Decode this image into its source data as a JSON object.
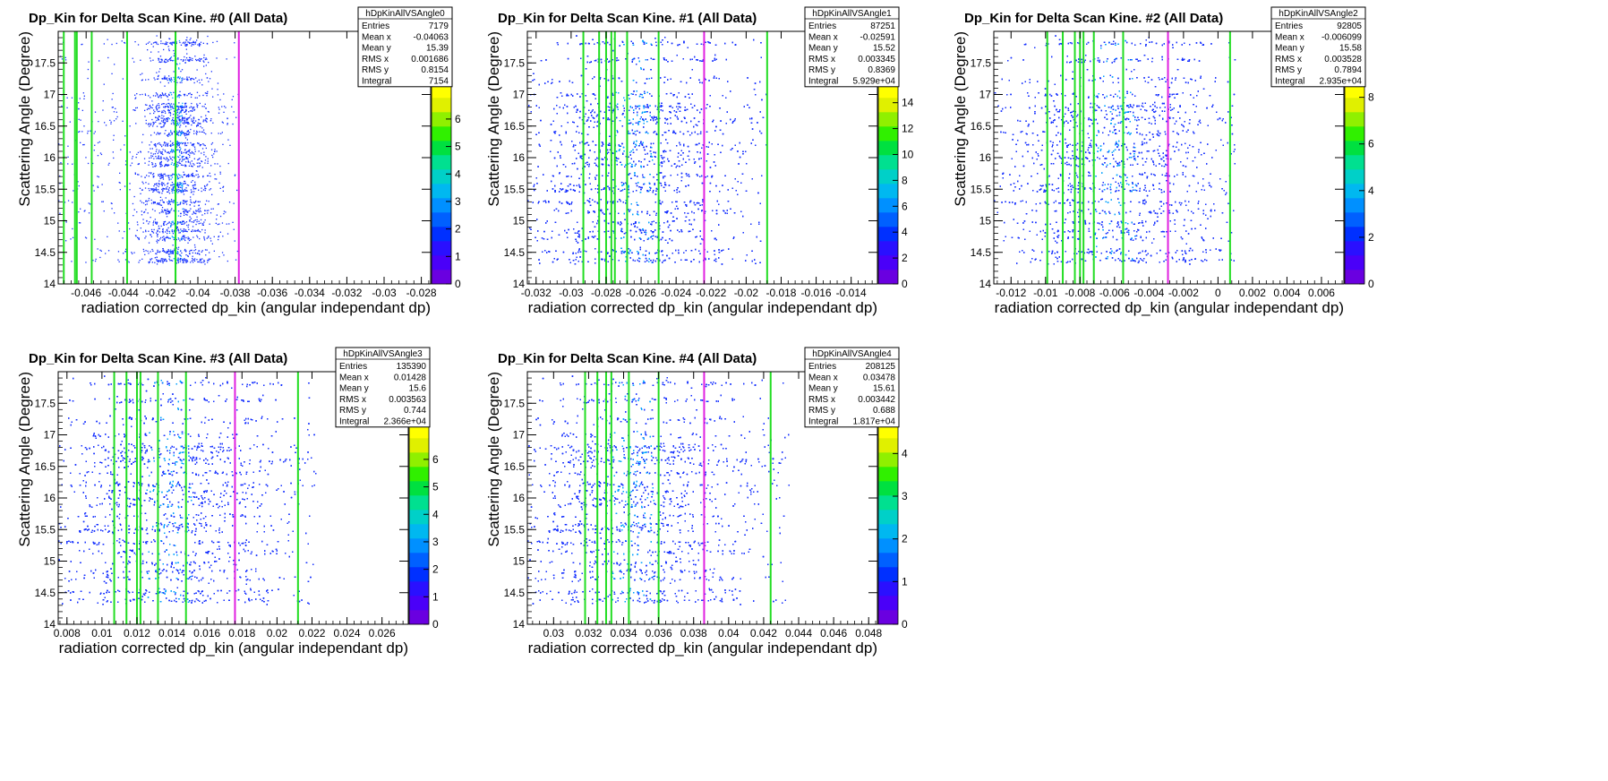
{
  "colors": {
    "palette": [
      "#6a00e0",
      "#4a00f8",
      "#2a10ff",
      "#0030ff",
      "#0060ff",
      "#0090ff",
      "#00b8f0",
      "#00d0c8",
      "#00e090",
      "#00e040",
      "#30f000",
      "#90f000",
      "#e0f000",
      "#ffff00"
    ],
    "cut_line": "#22dd22",
    "peak_line": "#e020e0",
    "dots": "#1530ff",
    "dots_dense": "#00a0ff"
  },
  "chart_data": [
    {
      "type": "heatmap",
      "title": "Dp_Kin for Delta Scan Kine. #0 (All Data)",
      "xlabel": "radiation corrected dp_kin (angular independant dp)",
      "ylabel": "Scattering Angle (Degree)",
      "xlim": [
        -0.0475,
        -0.0275
      ],
      "ylim": [
        14,
        18
      ],
      "xticks": [
        -0.046,
        -0.044,
        -0.042,
        -0.04,
        -0.038,
        -0.036,
        -0.034,
        -0.032,
        -0.03,
        -0.028
      ],
      "xtick_labels": [
        "-0.046",
        "-0.044",
        "-0.042",
        "-0.04",
        "-0.038",
        "-0.036",
        "-0.034",
        "-0.032",
        "-0.03",
        "-0.028"
      ],
      "yticks": [
        14,
        14.5,
        15,
        15.5,
        16,
        16.5,
        17,
        17.5
      ],
      "ytick_labels": [
        "14",
        "14.5",
        "15",
        "15.5",
        "16",
        "16.5",
        "17",
        "17.5"
      ],
      "zmax": 7.3,
      "zticks": [
        0,
        1,
        2,
        3,
        4,
        5,
        6
      ],
      "ztick_labels": [
        "0",
        "1",
        "2",
        "3",
        "4",
        "5",
        "6"
      ],
      "green_lines": [
        -0.0472,
        -0.0466,
        -0.0465,
        -0.0457,
        -0.0438,
        -0.0412,
        -0.0412
      ],
      "magenta_line": -0.0378,
      "density": {
        "x_center": -0.0412,
        "x_sigma": 0.0009,
        "tail_to": -0.0378,
        "points": 2300
      },
      "stats": {
        "name": "hDpKinAllVSAngle0",
        "rows": [
          [
            "Entries",
            "7179"
          ],
          [
            "Mean x",
            "-0.04063"
          ],
          [
            "Mean y",
            "15.39"
          ],
          [
            "RMS x",
            "0.001686"
          ],
          [
            "RMS y",
            "0.8154"
          ],
          [
            "Integral",
            "7154"
          ]
        ]
      }
    },
    {
      "type": "heatmap",
      "title": "Dp_Kin for Delta Scan Kine. #1 (All Data)",
      "xlabel": "radiation corrected dp_kin (angular independant dp)",
      "ylabel": "Scattering Angle (Degree)",
      "xlim": [
        -0.0325,
        -0.0125
      ],
      "ylim": [
        14,
        18
      ],
      "xticks": [
        -0.032,
        -0.03,
        -0.028,
        -0.026,
        -0.024,
        -0.022,
        -0.02,
        -0.018,
        -0.016,
        -0.014
      ],
      "xtick_labels": [
        "-0.032",
        "-0.03",
        "-0.028",
        "-0.026",
        "-0.024",
        "-0.022",
        "-0.02",
        "-0.018",
        "-0.016",
        "-0.014"
      ],
      "yticks": [
        14,
        14.5,
        15,
        15.5,
        16,
        16.5,
        17,
        17.5
      ],
      "ytick_labels": [
        "14",
        "14.5",
        "15",
        "15.5",
        "16",
        "16.5",
        "17",
        "17.5"
      ],
      "zmax": 15.5,
      "zticks": [
        0,
        2,
        4,
        6,
        8,
        10,
        12,
        14
      ],
      "ztick_labels": [
        "0",
        "2",
        "4",
        "6",
        "8",
        "10",
        "12",
        "14"
      ],
      "green_lines": [
        -0.0293,
        -0.0284,
        -0.028,
        -0.0277,
        -0.0275,
        -0.0268,
        -0.025,
        -0.0188
      ],
      "magenta_line": -0.0224,
      "density": {
        "x_center": -0.0265,
        "x_sigma": 0.0028,
        "tail_to": -0.0188,
        "points": 9000
      },
      "stats": {
        "name": "hDpKinAllVSAngle1",
        "rows": [
          [
            "Entries",
            "87251"
          ],
          [
            "Mean x",
            "-0.02591"
          ],
          [
            "Mean y",
            "15.52"
          ],
          [
            "RMS x",
            "0.003345"
          ],
          [
            "RMS y",
            "0.8369"
          ],
          [
            "Integral",
            "5.929e+04"
          ]
        ]
      }
    },
    {
      "type": "heatmap",
      "title": "Dp_Kin for Delta Scan Kine. #2 (All Data)",
      "xlabel": "radiation corrected dp_kin (angular independant dp)",
      "ylabel": "Scattering Angle (Degree)",
      "xlim": [
        -0.013,
        0.0073
      ],
      "ylim": [
        14,
        18
      ],
      "xticks": [
        -0.012,
        -0.01,
        -0.008,
        -0.006,
        -0.004,
        -0.002,
        0,
        0.002,
        0.004,
        0.006
      ],
      "xtick_labels": [
        "-0.012",
        "-0.01",
        "-0.008",
        "-0.006",
        "-0.004",
        "-0.002",
        "0",
        "0.002",
        "0.004",
        "0.006"
      ],
      "yticks": [
        14,
        14.5,
        15,
        15.5,
        16,
        16.5,
        17,
        17.5
      ],
      "ytick_labels": [
        "14",
        "14.5",
        "15",
        "15.5",
        "16",
        "16.5",
        "17",
        "17.5"
      ],
      "zmax": 8.6,
      "zticks": [
        0,
        2,
        4,
        6,
        8
      ],
      "ztick_labels": [
        "0",
        "2",
        "4",
        "6",
        "8"
      ],
      "green_lines": [
        -0.0099,
        -0.009,
        -0.0083,
        -0.008,
        -0.0078,
        -0.0072,
        -0.0055,
        0.0007
      ],
      "magenta_line": -0.0029,
      "density": {
        "x_center": -0.006,
        "x_sigma": 0.003,
        "tail_to": 0.001,
        "points": 8000
      },
      "stats": {
        "name": "hDpKinAllVSAngle2",
        "rows": [
          [
            "Entries",
            "92805"
          ],
          [
            "Mean x",
            "-0.006099"
          ],
          [
            "Mean y",
            "15.58"
          ],
          [
            "RMS x",
            "0.003528"
          ],
          [
            "RMS y",
            "0.7894"
          ],
          [
            "Integral",
            "2.935e+04"
          ]
        ]
      }
    },
    {
      "type": "heatmap",
      "title": "Dp_Kin for Delta Scan Kine. #3 (All Data)",
      "xlabel": "radiation corrected dp_kin (angular independant dp)",
      "ylabel": "Scattering Angle (Degree)",
      "xlim": [
        0.0075,
        0.0275
      ],
      "ylim": [
        14,
        18
      ],
      "xticks": [
        0.008,
        0.01,
        0.012,
        0.014,
        0.016,
        0.018,
        0.02,
        0.022,
        0.024,
        0.026
      ],
      "xtick_labels": [
        "0.008",
        "0.01",
        "0.012",
        "0.014",
        "0.016",
        "0.018",
        "0.02",
        "0.022",
        "0.024",
        "0.026"
      ],
      "yticks": [
        14,
        14.5,
        15,
        15.5,
        16,
        16.5,
        17,
        17.5
      ],
      "ytick_labels": [
        "14",
        "14.5",
        "15",
        "15.5",
        "16",
        "16.5",
        "17",
        "17.5"
      ],
      "zmax": 7.3,
      "zticks": [
        0,
        1,
        2,
        3,
        4,
        5,
        6
      ],
      "ztick_labels": [
        "0",
        "1",
        "2",
        "3",
        "4",
        "5",
        "6"
      ],
      "green_lines": [
        0.0107,
        0.0114,
        0.012,
        0.0122,
        0.0132,
        0.0148,
        0.0212
      ],
      "magenta_line": 0.0176,
      "density": {
        "x_center": 0.0138,
        "x_sigma": 0.0032,
        "tail_to": 0.0222,
        "points": 9000
      },
      "stats": {
        "name": "hDpKinAllVSAngle3",
        "rows": [
          [
            "Entries",
            "135390"
          ],
          [
            "Mean x",
            "0.01428"
          ],
          [
            "Mean y",
            "15.6"
          ],
          [
            "RMS x",
            "0.003563"
          ],
          [
            "RMS y",
            "0.744"
          ],
          [
            "Integral",
            "2.366e+04"
          ]
        ]
      }
    },
    {
      "type": "heatmap",
      "title": "Dp_Kin for Delta Scan Kine. #4 (All Data)",
      "xlabel": "radiation corrected dp_kin (angular independant dp)",
      "ylabel": "Scattering Angle (Degree)",
      "xlim": [
        0.0285,
        0.0485
      ],
      "ylim": [
        14,
        18
      ],
      "xticks": [
        0.03,
        0.032,
        0.034,
        0.036,
        0.038,
        0.04,
        0.042,
        0.044,
        0.046,
        0.048
      ],
      "xtick_labels": [
        "0.03",
        "0.032",
        "0.034",
        "0.036",
        "0.038",
        "0.04",
        "0.042",
        "0.044",
        "0.046",
        "0.048"
      ],
      "yticks": [
        14,
        14.5,
        15,
        15.5,
        16,
        16.5,
        17,
        17.5
      ],
      "ytick_labels": [
        "14",
        "14.5",
        "15",
        "15.5",
        "16",
        "16.5",
        "17",
        "17.5"
      ],
      "zmax": 4.7,
      "zticks": [
        0,
        1,
        2,
        3,
        4
      ],
      "ztick_labels": [
        "0",
        "1",
        "2",
        "3",
        "4"
      ],
      "green_lines": [
        0.0318,
        0.0325,
        0.033,
        0.0333,
        0.0343,
        0.036,
        0.0424
      ],
      "magenta_line": 0.0386,
      "density": {
        "x_center": 0.0345,
        "x_sigma": 0.003,
        "tail_to": 0.0435,
        "points": 9000
      },
      "stats": {
        "name": "hDpKinAllVSAngle4",
        "rows": [
          [
            "Entries",
            "208125"
          ],
          [
            "Mean x",
            "0.03478"
          ],
          [
            "Mean y",
            "15.61"
          ],
          [
            "RMS x",
            "0.003442"
          ],
          [
            "RMS y",
            "0.688"
          ],
          [
            "Integral",
            "1.817e+04"
          ]
        ]
      }
    }
  ]
}
